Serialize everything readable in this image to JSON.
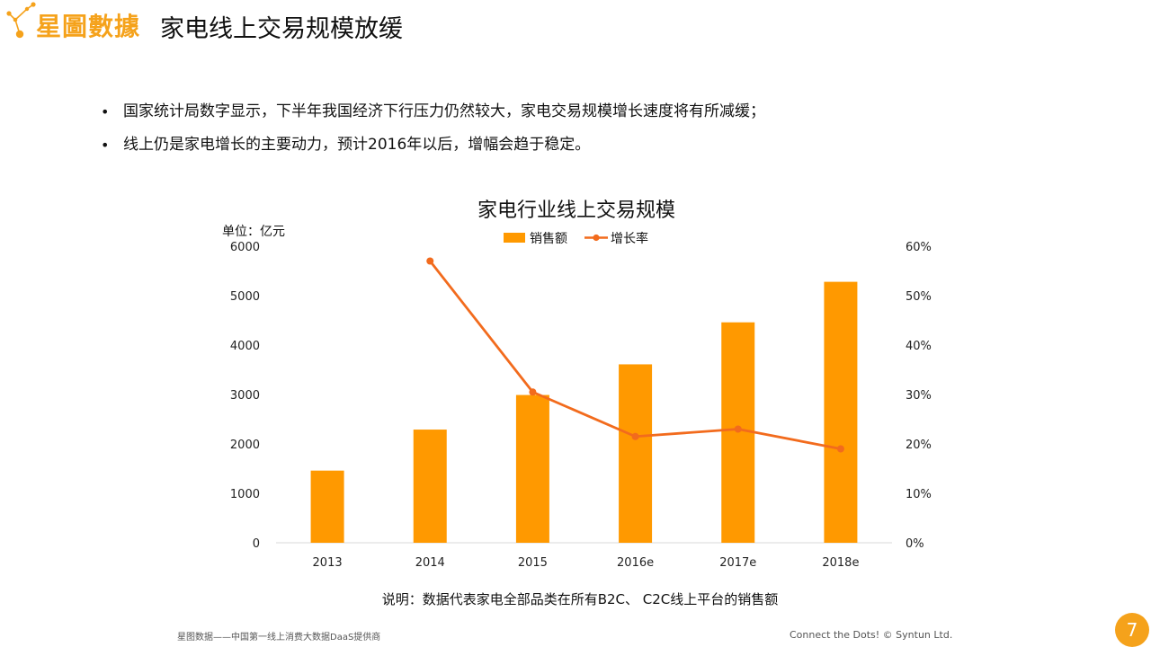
{
  "brand": {
    "name": "星圖數據",
    "logo_icon": "constellation-logo-icon",
    "accent_color": "#F5A21B"
  },
  "page": {
    "title": "家电线上交易规模放缓",
    "page_number": "7"
  },
  "bullets": [
    "国家统计局数字显示，下半年我国经济下行压力仍然较大，家电交易规模增长速度将有所减缓；",
    "线上仍是家电增长的主要动力，预计2016年以后，增幅会趋于稳定。"
  ],
  "chart_data": {
    "type": "bar",
    "title": "家电行业线上交易规模",
    "unit_label": "单位：亿元",
    "categories": [
      "2013",
      "2014",
      "2015",
      "2016e",
      "2017e",
      "2018e"
    ],
    "series": [
      {
        "name": "销售额",
        "type": "bar",
        "axis": "left",
        "color": "#FF9900",
        "values": [
          1460,
          2290,
          2990,
          3610,
          4460,
          5280
        ]
      },
      {
        "name": "增长率",
        "type": "line",
        "axis": "right",
        "color": "#F26B1D",
        "values": [
          null,
          0.57,
          0.305,
          0.215,
          0.23,
          0.19
        ]
      }
    ],
    "y_left": {
      "lim": [
        0,
        6000
      ],
      "ticks": [
        "0",
        "1000",
        "2000",
        "3000",
        "4000",
        "5000",
        "6000"
      ]
    },
    "y_right": {
      "lim": [
        0,
        0.6
      ],
      "ticks": [
        "0%",
        "10%",
        "20%",
        "30%",
        "40%",
        "50%",
        "60%"
      ]
    },
    "grid": false,
    "legend_position": "top-center"
  },
  "note": "说明：数据代表家电全部品类在所有B2C、 C2C线上平台的销售额",
  "footer": {
    "left": "星图数据——中国第一线上消费大数据DaaS提供商",
    "right": "Connect the Dots!  © Syntun Ltd."
  }
}
